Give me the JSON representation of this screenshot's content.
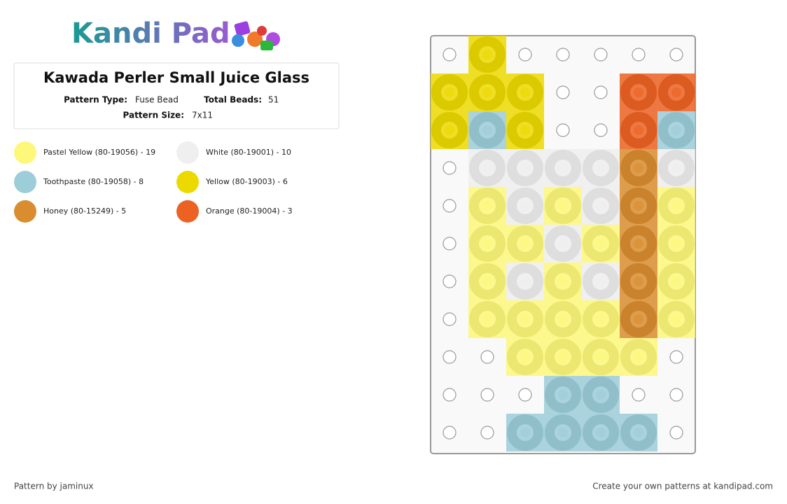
{
  "logo": "Kandi Pad",
  "header": {
    "title": "Kawada Perler Small Juice Glass",
    "type_label": "Pattern Type:",
    "type_value": "Fuse Bead",
    "total_label": "Total Beads:",
    "total_value": "51",
    "size_label": "Pattern Size:",
    "size_value": "7x11"
  },
  "legend": [
    {
      "label": "Pastel Yellow (80-19056) - 19",
      "color": "#fdf87a"
    },
    {
      "label": "White (80-19001) - 10",
      "color": "#efefef"
    },
    {
      "label": "Toothpaste (80-19058) - 8",
      "color": "#9ccdd8"
    },
    {
      "label": "Yellow (80-19003) - 6",
      "color": "#ecd900"
    },
    {
      "label": "Honey (80-15249) - 5",
      "color": "#d98d2f"
    },
    {
      "label": "Orange (80-19004) - 3",
      "color": "#ec6222"
    }
  ],
  "grid": [
    [
      null,
      3,
      null,
      null,
      null,
      null,
      null
    ],
    [
      3,
      3,
      3,
      null,
      null,
      5,
      5
    ],
    [
      3,
      2,
      3,
      null,
      null,
      5,
      2
    ],
    [
      null,
      1,
      1,
      1,
      1,
      4,
      1
    ],
    [
      null,
      0,
      1,
      0,
      1,
      4,
      0
    ],
    [
      null,
      0,
      0,
      1,
      0,
      4,
      0
    ],
    [
      null,
      0,
      1,
      0,
      1,
      4,
      0
    ],
    [
      null,
      0,
      0,
      0,
      0,
      4,
      0
    ],
    [
      null,
      null,
      0,
      0,
      0,
      0,
      null
    ],
    [
      null,
      null,
      null,
      2,
      2,
      null,
      null
    ],
    [
      null,
      null,
      2,
      2,
      2,
      2,
      null
    ]
  ],
  "footer": {
    "credit": "Pattern by jaminux",
    "promo": "Create your own patterns at kandipad.com"
  }
}
